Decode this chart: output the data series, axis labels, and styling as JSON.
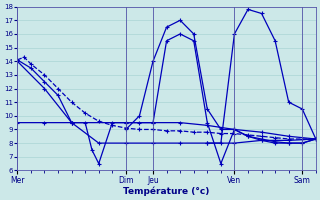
{
  "xlabel": "Température (°c)",
  "background_color": "#cce8e8",
  "grid_color": "#aad4d4",
  "line_color": "#0000bb",
  "ylim": [
    6,
    18
  ],
  "yticks": [
    6,
    7,
    8,
    9,
    10,
    11,
    12,
    13,
    14,
    15,
    16,
    17,
    18
  ],
  "day_labels": [
    "Mer",
    "Dim",
    "Jeu",
    "Ven",
    "Sam"
  ],
  "day_positions": [
    0,
    16,
    20,
    32,
    42
  ],
  "xlim": [
    0,
    44
  ],
  "series": [
    {
      "x": [
        0,
        1,
        2,
        4,
        6,
        8,
        10,
        12,
        14,
        16,
        18,
        20,
        22,
        24,
        26,
        28,
        30,
        32,
        34,
        36,
        38,
        40,
        42,
        44
      ],
      "y": [
        14.1,
        14.3,
        13.8,
        13.0,
        12.0,
        11.0,
        10.2,
        9.6,
        9.3,
        9.1,
        9.0,
        9.0,
        8.9,
        8.9,
        8.8,
        8.8,
        8.7,
        8.7,
        8.6,
        8.5,
        8.4,
        8.3,
        8.3,
        8.3
      ],
      "linestyle": "--"
    },
    {
      "x": [
        0,
        2,
        4,
        6,
        8,
        10,
        11,
        12,
        14,
        16,
        18,
        20,
        22,
        24,
        26,
        28,
        30,
        32,
        34,
        36,
        38,
        40,
        42,
        44
      ],
      "y": [
        14.1,
        13.5,
        12.5,
        11.5,
        9.5,
        9.5,
        7.5,
        6.5,
        9.5,
        9.5,
        9.5,
        9.5,
        15.5,
        16.0,
        15.5,
        9.5,
        6.5,
        9.0,
        8.5,
        8.3,
        8.1,
        8.0,
        8.0,
        8.3
      ],
      "linestyle": "-"
    },
    {
      "x": [
        0,
        4,
        8,
        16,
        20,
        24,
        28,
        32,
        36,
        40,
        44
      ],
      "y": [
        9.5,
        9.5,
        9.5,
        9.5,
        9.5,
        9.5,
        9.3,
        9.0,
        8.8,
        8.5,
        8.3
      ],
      "linestyle": "-"
    },
    {
      "x": [
        0,
        4,
        8,
        12,
        16,
        20,
        24,
        28,
        32,
        36,
        40,
        44
      ],
      "y": [
        14.0,
        12.0,
        9.5,
        8.0,
        8.0,
        8.0,
        8.0,
        8.0,
        8.0,
        8.2,
        8.2,
        8.3
      ],
      "linestyle": "-"
    },
    {
      "x": [
        16,
        18,
        20,
        22,
        24,
        26,
        28,
        30,
        32,
        34,
        36,
        38,
        40,
        42,
        44
      ],
      "y": [
        9.0,
        10.0,
        14.0,
        16.5,
        17.0,
        16.0,
        10.5,
        9.0,
        9.0,
        8.5,
        8.2,
        8.0,
        8.0,
        8.0,
        8.3
      ],
      "linestyle": "-"
    },
    {
      "x": [
        28,
        30,
        32,
        34,
        36,
        38,
        40,
        42,
        44
      ],
      "y": [
        8.0,
        8.0,
        16.0,
        17.8,
        17.5,
        15.5,
        11.0,
        10.5,
        8.3
      ],
      "linestyle": "-"
    }
  ]
}
